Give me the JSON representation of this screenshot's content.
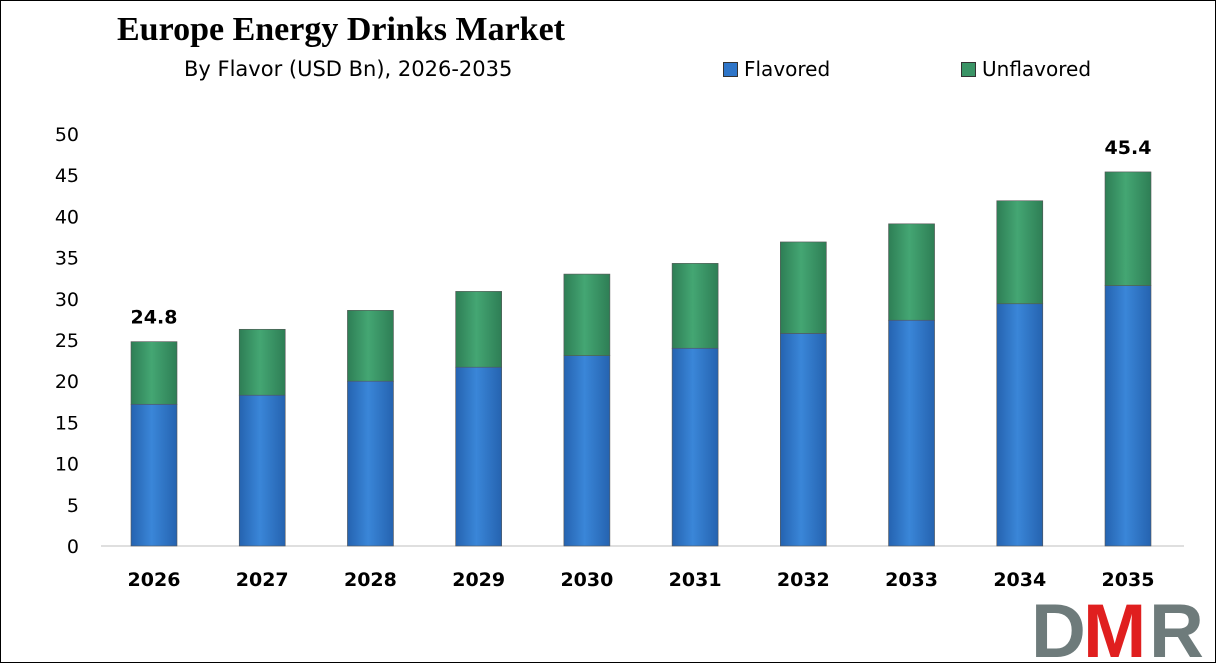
{
  "chart_data": {
    "type": "bar",
    "stacked": true,
    "title": "Europe Energy Drinks Market",
    "subtitle": "By Flavor (USD Bn), 2026-2035",
    "categories": [
      "2026",
      "2027",
      "2028",
      "2029",
      "2030",
      "2031",
      "2032",
      "2033",
      "2034",
      "2035"
    ],
    "series": [
      {
        "name": "Flavored",
        "color": "#2E75C8",
        "values": [
          17.2,
          18.3,
          20.0,
          21.7,
          23.1,
          24.0,
          25.8,
          27.4,
          29.4,
          31.6
        ]
      },
      {
        "name": "Unflavored",
        "color": "#3A9466",
        "values": [
          7.6,
          8.0,
          8.6,
          9.2,
          9.9,
          10.3,
          11.1,
          11.7,
          12.5,
          13.8
        ]
      }
    ],
    "data_labels": [
      {
        "category": "2026",
        "text": "24.8"
      },
      {
        "category": "2035",
        "text": "45.4"
      }
    ],
    "ylim": [
      0,
      50
    ],
    "yticks": [
      "0",
      "5",
      "10",
      "15",
      "20",
      "25",
      "30",
      "35",
      "40",
      "45",
      "50"
    ],
    "grid": false,
    "legend": "top-right"
  },
  "logo": {
    "text": "DMR",
    "colors": [
      "#6E7B7B",
      "#E01F1F"
    ]
  }
}
